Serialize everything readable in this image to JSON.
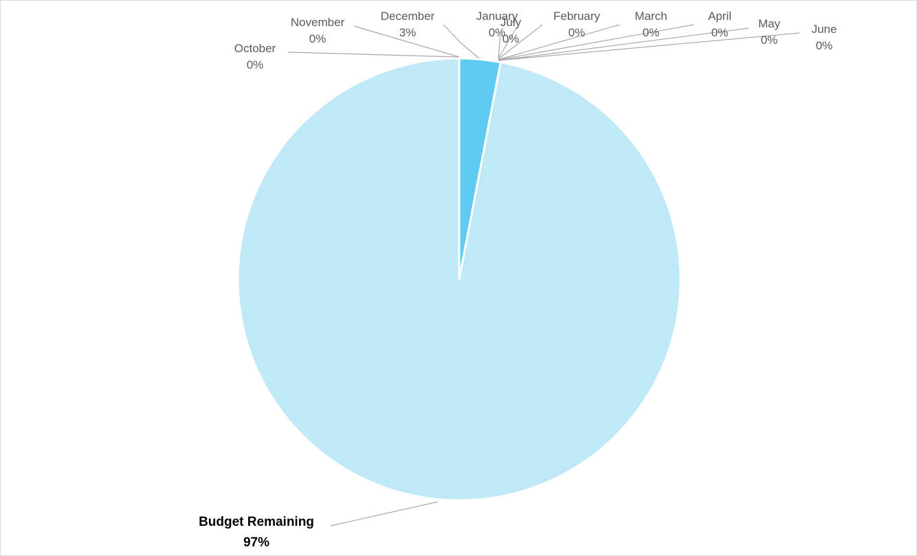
{
  "chart_data": {
    "type": "pie",
    "title": "",
    "slices": [
      {
        "name": "Budget Remaining",
        "value": 97,
        "label": "97%",
        "color": "#c0e9f8",
        "bold": true
      },
      {
        "name": "October",
        "value": 0,
        "label": "0%",
        "color": "#c0e9f8"
      },
      {
        "name": "November",
        "value": 0,
        "label": "0%",
        "color": "#c0e9f8"
      },
      {
        "name": "December",
        "value": 3,
        "label": "3%",
        "color": "#5fcbf0"
      },
      {
        "name": "January",
        "value": 0,
        "label": "0%",
        "color": "#5fcbf0"
      },
      {
        "name": "February",
        "value": 0,
        "label": "0%",
        "color": "#5fcbf0"
      },
      {
        "name": "March",
        "value": 0,
        "label": "0%",
        "color": "#5fcbf0"
      },
      {
        "name": "April",
        "value": 0,
        "label": "0%",
        "color": "#5fcbf0"
      },
      {
        "name": "May",
        "value": 0,
        "label": "0%",
        "color": "#5fcbf0"
      },
      {
        "name": "June",
        "value": 0,
        "label": "0%",
        "color": "#5fcbf0"
      },
      {
        "name": "July",
        "value": 0,
        "label": "0%",
        "color": "#5fcbf0"
      }
    ],
    "slice_border_color": "#ffffff",
    "leader_line_color": "#a6a6a6",
    "label_color": "#595959",
    "legend": "none"
  }
}
